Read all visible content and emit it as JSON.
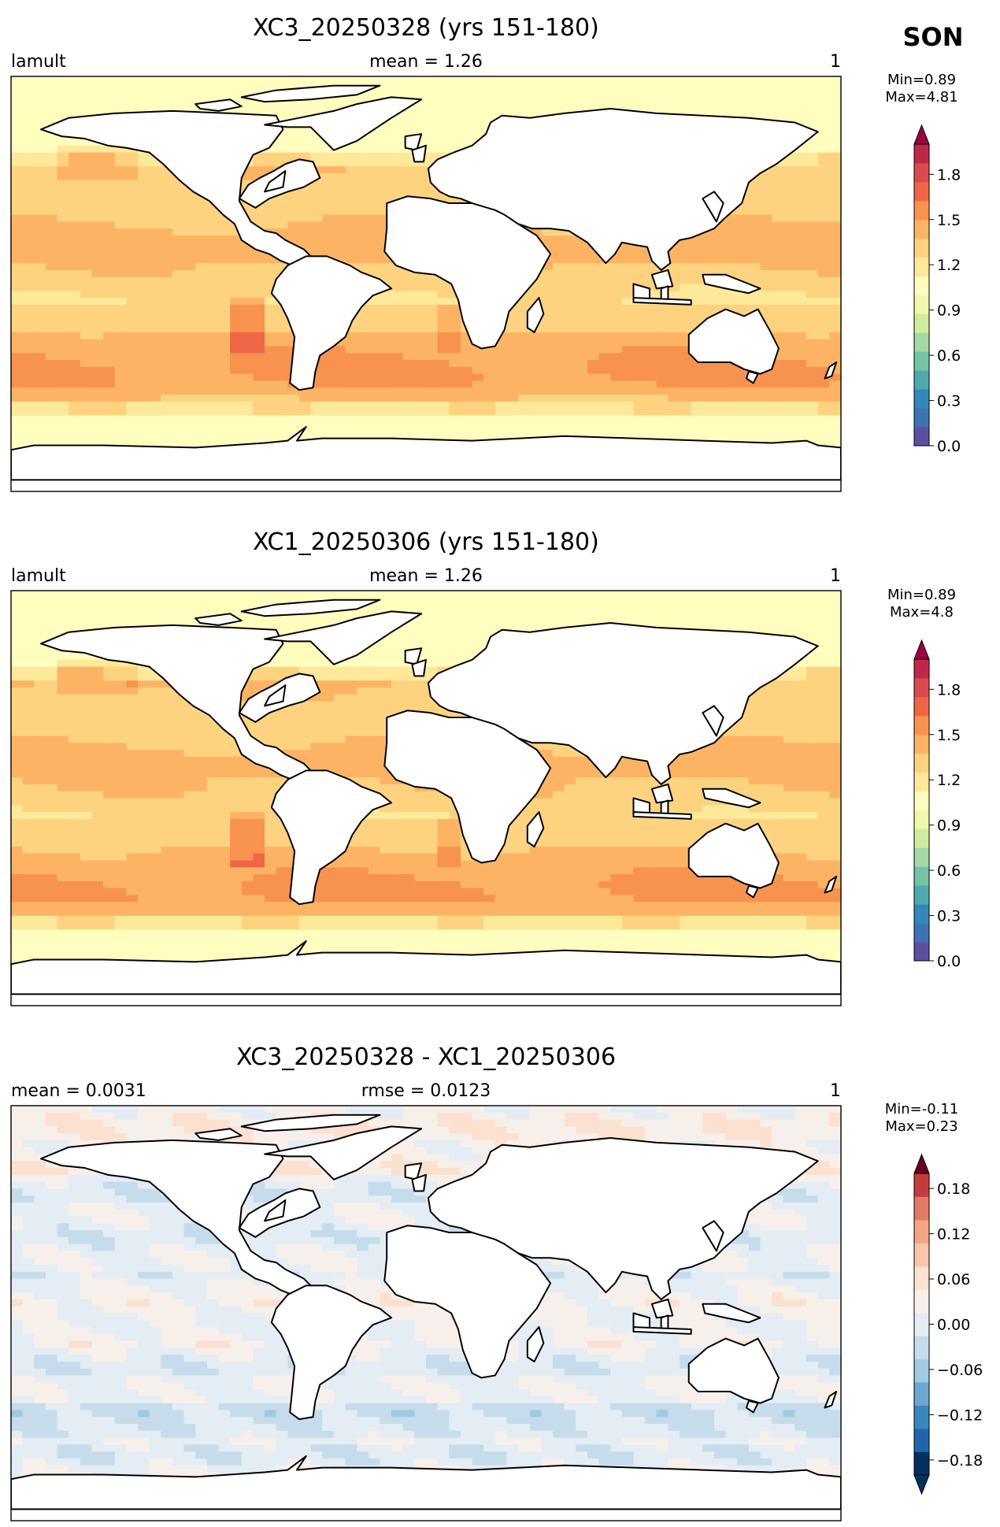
{
  "season_label": "SON",
  "colors": {
    "land": "#ffffff",
    "coast": "#000000",
    "cmap_main": [
      "#5e4fa2",
      "#3e73b5",
      "#3389bd",
      "#50a9af",
      "#73c3a4",
      "#a3d9a4",
      "#cfec9d",
      "#eef8a8",
      "#fffebe",
      "#fee99a",
      "#fdd380",
      "#fcb464",
      "#f8924f",
      "#ee6645",
      "#da4a4e",
      "#c0284a",
      "#9e0142"
    ],
    "cmap_diff": [
      "#053061",
      "#2166ac",
      "#3a87bf",
      "#6aa8d0",
      "#9fcae1",
      "#c6dcec",
      "#e3edf3",
      "#f7f0ea",
      "#fce0d0",
      "#fbc4ab",
      "#f4a582",
      "#e07c63",
      "#c43c3c",
      "#a51f35",
      "#67001f"
    ]
  },
  "chart_data": [
    {
      "type": "heatmap",
      "title": "XC3_20250328 (yrs 151-180)",
      "left_label": "lamult",
      "center_label": "mean = 1.26",
      "right_label": "1",
      "stats": {
        "min_label": "Min=0.89",
        "max_label": "Max=4.81"
      },
      "field_summary": {
        "mean": 1.26,
        "min": 0.89,
        "max": 4.81,
        "ocean_typical": 1.4,
        "sea_ice_edge": 1.1
      },
      "colorbar": {
        "vmin": 0.0,
        "vmax": 2.0,
        "ticks": [
          "0.0",
          "0.3",
          "0.6",
          "0.9",
          "1.2",
          "1.5",
          "1.8"
        ],
        "tick_values": [
          0.0,
          0.3,
          0.6,
          0.9,
          1.2,
          1.5,
          1.8
        ],
        "extend": "max",
        "levels": 16
      }
    },
    {
      "type": "heatmap",
      "title": "XC1_20250306 (yrs 151-180)",
      "left_label": "lamult",
      "center_label": "mean = 1.26",
      "right_label": "1",
      "stats": {
        "min_label": "Min=0.89",
        "max_label": "Max=4.8"
      },
      "field_summary": {
        "mean": 1.26,
        "min": 0.89,
        "max": 4.8,
        "ocean_typical": 1.4,
        "sea_ice_edge": 1.1
      },
      "colorbar": {
        "vmin": 0.0,
        "vmax": 2.0,
        "ticks": [
          "0.0",
          "0.3",
          "0.6",
          "0.9",
          "1.2",
          "1.5",
          "1.8"
        ],
        "tick_values": [
          0.0,
          0.3,
          0.6,
          0.9,
          1.2,
          1.5,
          1.8
        ],
        "extend": "max",
        "levels": 16
      }
    },
    {
      "type": "heatmap",
      "title": "XC3_20250328 - XC1_20250306",
      "left_label": "mean = 0.0031",
      "center_label": "rmse = 0.0123",
      "right_label": "1",
      "stats": {
        "min_label": "Min=-0.11",
        "max_label": "Max=0.23"
      },
      "field_summary": {
        "mean": 0.0031,
        "rmse": 0.0123,
        "min": -0.11,
        "max": 0.23
      },
      "colorbar": {
        "vmin": -0.2,
        "vmax": 0.2,
        "ticks": [
          "−0.18",
          "−0.12",
          "−0.06",
          "0.00",
          "0.06",
          "0.12",
          "0.18"
        ],
        "tick_values": [
          -0.18,
          -0.12,
          -0.06,
          0.0,
          0.06,
          0.12,
          0.18
        ],
        "extend": "both",
        "levels": 13
      }
    }
  ]
}
